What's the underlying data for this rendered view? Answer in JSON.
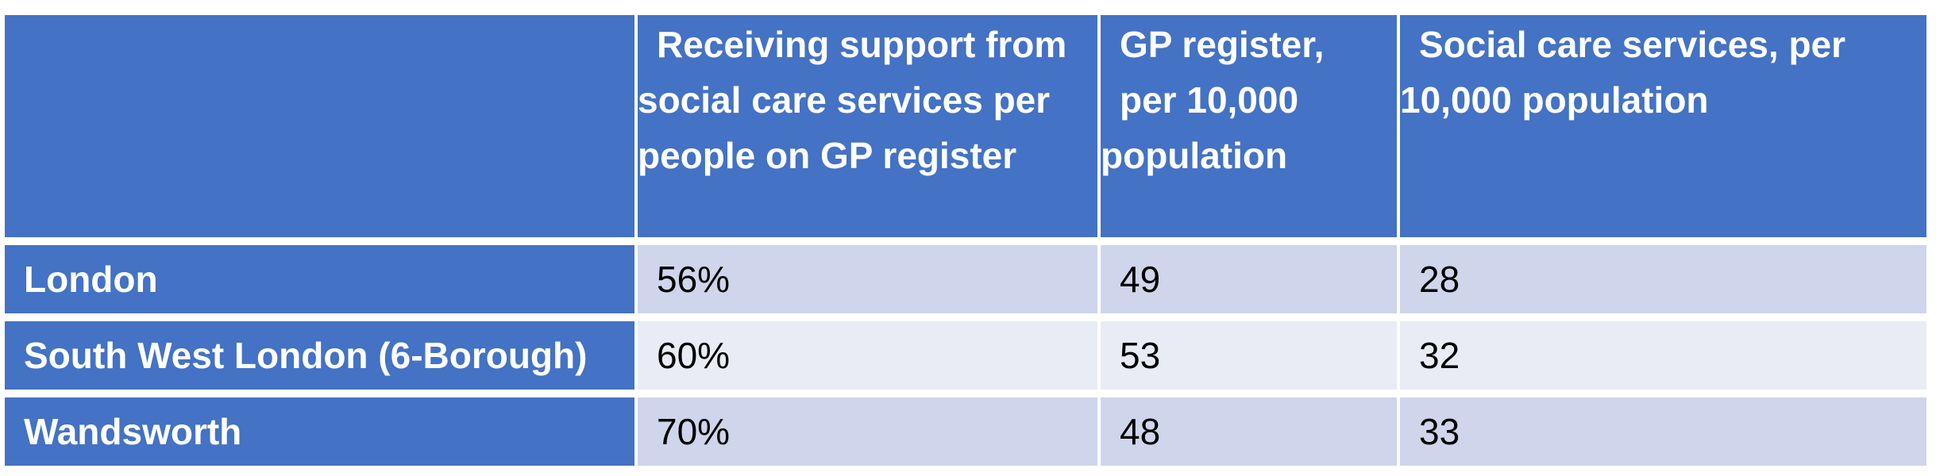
{
  "table": {
    "headers": [
      "",
      [
        "Receiving support from",
        "social care services per",
        "people on GP register"
      ],
      [
        "GP register,",
        "per 10,000",
        "population"
      ],
      [
        "Social care services, per",
        "10,000 population"
      ]
    ],
    "rows": [
      {
        "area": "London",
        "receiving_support": "56%",
        "gp_register": "49",
        "social_care": "28"
      },
      {
        "area": "South West London (6-Borough)",
        "receiving_support": "60%",
        "gp_register": "53",
        "social_care": "32"
      },
      {
        "area": "Wandsworth",
        "receiving_support": "70%",
        "gp_register": "48",
        "social_care": "33"
      }
    ]
  },
  "colors": {
    "header_blue": "#4472c4",
    "row_band_dark": "#cfd5ea",
    "row_band_light": "#e9ebf5",
    "header_text": "#ffffff",
    "body_text": "#000000"
  }
}
